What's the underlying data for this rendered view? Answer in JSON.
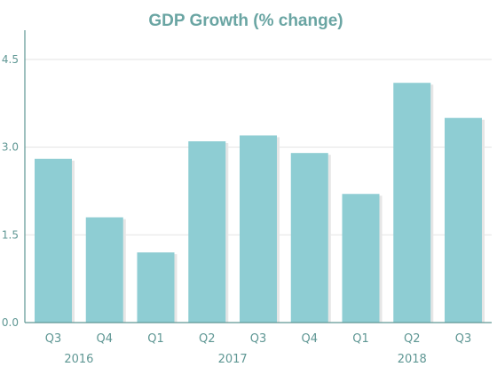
{
  "chart_data": {
    "type": "bar",
    "title": "GDP Growth (% change)",
    "categories": [
      "Q3",
      "Q4",
      "Q1",
      "Q2",
      "Q3",
      "Q4",
      "Q1",
      "Q2",
      "Q3"
    ],
    "year_groups": [
      {
        "label": "2016",
        "span": [
          0,
          1
        ]
      },
      {
        "label": "2017",
        "span": [
          2,
          5
        ]
      },
      {
        "label": "2018",
        "span": [
          6,
          8
        ]
      }
    ],
    "values": [
      2.8,
      1.8,
      1.2,
      3.1,
      3.2,
      2.9,
      2.2,
      4.1,
      3.5
    ],
    "ylim": [
      0,
      5
    ],
    "yticks": [
      "0.0",
      "1.5",
      "3.0",
      "4.5"
    ],
    "ytick_values": [
      0,
      1.5,
      3.0,
      4.5
    ],
    "xlabel": "",
    "ylabel": "",
    "grid": true,
    "colors": {
      "bar": "#8ecdd3",
      "shadow": "#e6e6e6",
      "axis": "#5f9794",
      "grid": "#e3e3e3",
      "title": "#6aa5a3"
    }
  }
}
